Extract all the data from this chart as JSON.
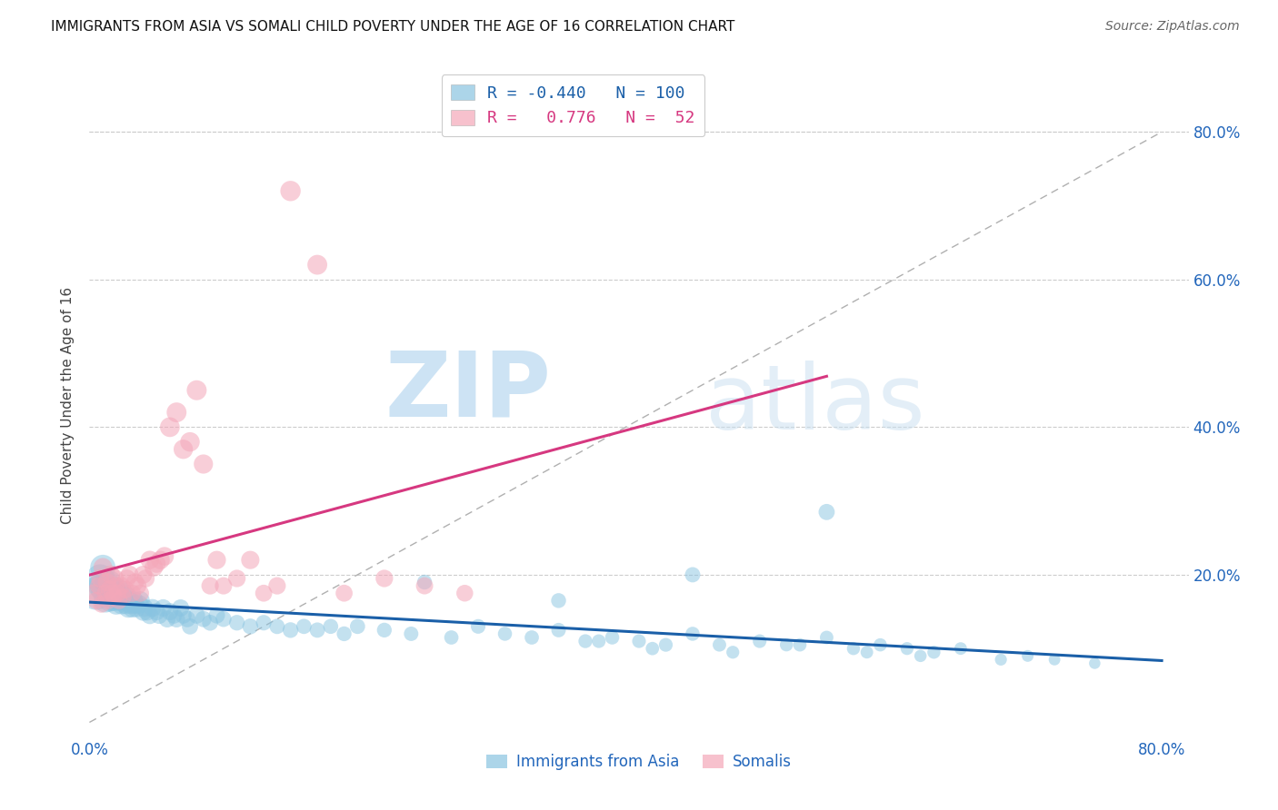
{
  "title": "IMMIGRANTS FROM ASIA VS SOMALI CHILD POVERTY UNDER THE AGE OF 16 CORRELATION CHART",
  "source": "Source: ZipAtlas.com",
  "ylabel": "Child Poverty Under the Age of 16",
  "xlim": [
    0.0,
    0.82
  ],
  "ylim": [
    -0.02,
    0.88
  ],
  "legend_labels": [
    "Immigrants from Asia",
    "Somalis"
  ],
  "blue_color": "#89c4e1",
  "pink_color": "#f4a7b9",
  "blue_line_color": "#1a5fa8",
  "pink_line_color": "#d63880",
  "R_blue": -0.44,
  "N_blue": 100,
  "R_pink": 0.776,
  "N_pink": 52,
  "background_color": "#ffffff",
  "grid_color": "#cccccc",
  "blue_scatter_x": [
    0.005,
    0.008,
    0.009,
    0.01,
    0.01,
    0.012,
    0.013,
    0.014,
    0.015,
    0.015,
    0.016,
    0.017,
    0.018,
    0.019,
    0.02,
    0.02,
    0.021,
    0.022,
    0.022,
    0.023,
    0.024,
    0.025,
    0.026,
    0.027,
    0.028,
    0.029,
    0.03,
    0.031,
    0.032,
    0.033,
    0.034,
    0.035,
    0.037,
    0.038,
    0.04,
    0.041,
    0.043,
    0.045,
    0.047,
    0.05,
    0.052,
    0.055,
    0.058,
    0.06,
    0.063,
    0.065,
    0.068,
    0.07,
    0.073,
    0.075,
    0.08,
    0.085,
    0.09,
    0.095,
    0.1,
    0.11,
    0.12,
    0.13,
    0.14,
    0.15,
    0.16,
    0.17,
    0.18,
    0.19,
    0.2,
    0.22,
    0.24,
    0.25,
    0.27,
    0.29,
    0.31,
    0.33,
    0.35,
    0.37,
    0.39,
    0.41,
    0.43,
    0.45,
    0.47,
    0.5,
    0.53,
    0.55,
    0.57,
    0.59,
    0.61,
    0.63,
    0.65,
    0.55,
    0.45,
    0.35,
    0.38,
    0.42,
    0.48,
    0.52,
    0.58,
    0.62,
    0.68,
    0.7,
    0.72,
    0.75
  ],
  "blue_scatter_y": [
    0.175,
    0.195,
    0.185,
    0.21,
    0.18,
    0.165,
    0.19,
    0.175,
    0.19,
    0.165,
    0.18,
    0.17,
    0.165,
    0.18,
    0.175,
    0.16,
    0.17,
    0.165,
    0.18,
    0.17,
    0.16,
    0.175,
    0.165,
    0.16,
    0.17,
    0.155,
    0.165,
    0.16,
    0.155,
    0.165,
    0.16,
    0.155,
    0.16,
    0.165,
    0.15,
    0.155,
    0.15,
    0.145,
    0.155,
    0.15,
    0.145,
    0.155,
    0.14,
    0.15,
    0.145,
    0.14,
    0.155,
    0.145,
    0.14,
    0.13,
    0.145,
    0.14,
    0.135,
    0.145,
    0.14,
    0.135,
    0.13,
    0.135,
    0.13,
    0.125,
    0.13,
    0.125,
    0.13,
    0.12,
    0.13,
    0.125,
    0.12,
    0.19,
    0.115,
    0.13,
    0.12,
    0.115,
    0.125,
    0.11,
    0.115,
    0.11,
    0.105,
    0.12,
    0.105,
    0.11,
    0.105,
    0.115,
    0.1,
    0.105,
    0.1,
    0.095,
    0.1,
    0.285,
    0.2,
    0.165,
    0.11,
    0.1,
    0.095,
    0.105,
    0.095,
    0.09,
    0.085,
    0.09,
    0.085,
    0.08
  ],
  "blue_scatter_size": [
    700,
    500,
    450,
    400,
    380,
    360,
    340,
    320,
    350,
    310,
    300,
    290,
    280,
    285,
    290,
    270,
    275,
    265,
    270,
    260,
    255,
    260,
    250,
    245,
    250,
    240,
    245,
    235,
    230,
    235,
    225,
    220,
    215,
    220,
    210,
    205,
    200,
    195,
    200,
    190,
    185,
    192,
    180,
    188,
    175,
    180,
    185,
    175,
    170,
    165,
    175,
    168,
    162,
    168,
    160,
    155,
    158,
    152,
    148,
    155,
    145,
    148,
    142,
    138,
    145,
    138,
    132,
    140,
    128,
    135,
    125,
    128,
    132,
    122,
    125,
    118,
    120,
    125,
    115,
    118,
    112,
    115,
    108,
    110,
    105,
    108,
    100,
    165,
    148,
    140,
    118,
    112,
    105,
    108,
    100,
    95,
    90,
    88,
    85,
    82
  ],
  "pink_scatter_x": [
    0.003,
    0.005,
    0.007,
    0.008,
    0.009,
    0.01,
    0.012,
    0.013,
    0.014,
    0.015,
    0.016,
    0.017,
    0.018,
    0.019,
    0.02,
    0.021,
    0.022,
    0.024,
    0.025,
    0.027,
    0.028,
    0.03,
    0.032,
    0.034,
    0.036,
    0.038,
    0.04,
    0.042,
    0.045,
    0.048,
    0.05,
    0.053,
    0.056,
    0.06,
    0.065,
    0.07,
    0.075,
    0.08,
    0.085,
    0.09,
    0.095,
    0.1,
    0.11,
    0.12,
    0.13,
    0.14,
    0.15,
    0.17,
    0.19,
    0.22,
    0.25,
    0.28
  ],
  "pink_scatter_y": [
    0.175,
    0.165,
    0.185,
    0.195,
    0.16,
    0.21,
    0.175,
    0.19,
    0.165,
    0.18,
    0.2,
    0.175,
    0.17,
    0.195,
    0.185,
    0.175,
    0.165,
    0.185,
    0.17,
    0.18,
    0.195,
    0.2,
    0.175,
    0.19,
    0.185,
    0.175,
    0.2,
    0.195,
    0.22,
    0.21,
    0.215,
    0.22,
    0.225,
    0.4,
    0.42,
    0.37,
    0.38,
    0.45,
    0.35,
    0.185,
    0.22,
    0.185,
    0.195,
    0.22,
    0.175,
    0.185,
    0.72,
    0.62,
    0.175,
    0.195,
    0.185,
    0.175
  ],
  "pink_scatter_size": [
    200,
    185,
    195,
    210,
    180,
    220,
    195,
    210,
    185,
    200,
    215,
    195,
    190,
    205,
    200,
    190,
    185,
    195,
    188,
    192,
    198,
    205,
    188,
    195,
    192,
    188,
    205,
    198,
    215,
    210,
    210,
    215,
    218,
    245,
    248,
    235,
    238,
    250,
    232,
    190,
    210,
    188,
    192,
    210,
    182,
    190,
    260,
    248,
    182,
    192,
    185,
    178
  ]
}
